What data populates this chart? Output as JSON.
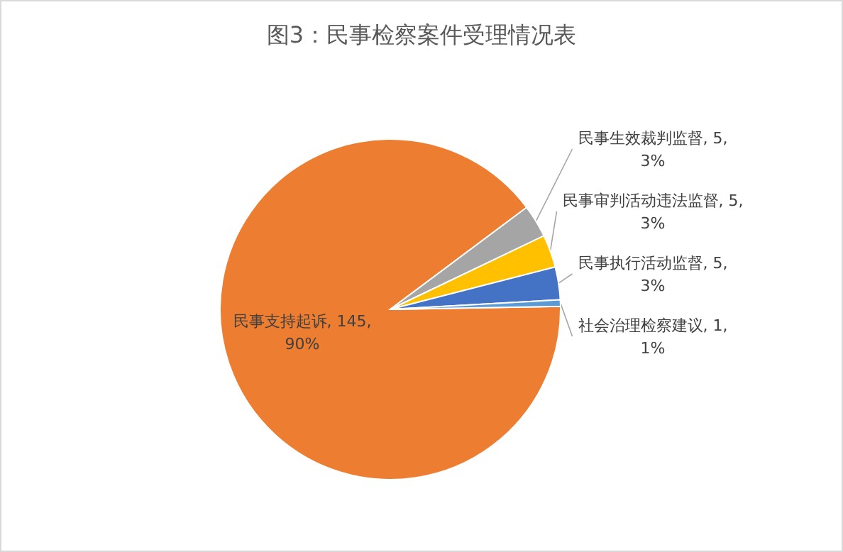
{
  "chart_data": {
    "type": "pie",
    "title": "图3：民事检察案件受理情况表",
    "categories": [
      "民事支持起诉",
      "民事生效裁判监督",
      "民事审判活动违法监督",
      "民事执行活动监督",
      "社会治理检察建议"
    ],
    "values": [
      145,
      5,
      5,
      5,
      1
    ],
    "value_labels": [
      ", 145, 90%",
      ", 5, 3%",
      ", 5, 3%",
      ", 5, 3%",
      ", 1, 1%"
    ],
    "colors": [
      "#ed7d31",
      "#a5a5a5",
      "#ffc000",
      "#4472c4",
      "#5b9bd5"
    ],
    "legend": false
  }
}
